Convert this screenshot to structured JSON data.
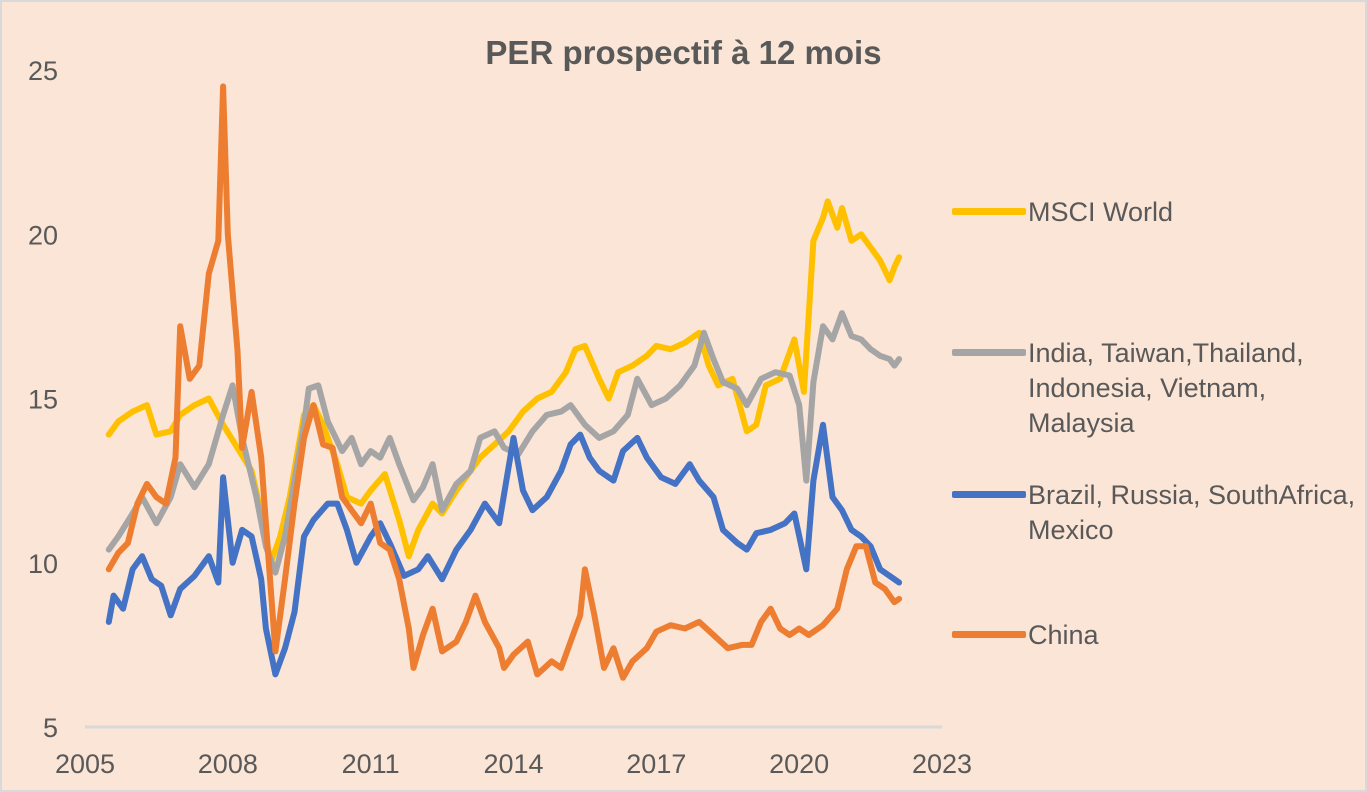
{
  "chart_data": {
    "type": "line",
    "title": "PER prospectif à 12 mois",
    "xlabel": "",
    "ylabel": "",
    "xlim": [
      2005,
      2023
    ],
    "ylim": [
      5,
      25
    ],
    "x_ticks": [
      "2005",
      "2008",
      "2011",
      "2014",
      "2017",
      "2020",
      "2023"
    ],
    "y_ticks": [
      "5",
      "10",
      "15",
      "20",
      "25"
    ],
    "grid": false,
    "legend_position": "right",
    "series": [
      {
        "name": "MSCI World",
        "color": "#ffc000",
        "points": [
          [
            2005.5,
            13.9
          ],
          [
            2005.7,
            14.3
          ],
          [
            2006.0,
            14.6
          ],
          [
            2006.3,
            14.8
          ],
          [
            2006.5,
            13.9
          ],
          [
            2006.8,
            14.0
          ],
          [
            2007.0,
            14.5
          ],
          [
            2007.3,
            14.8
          ],
          [
            2007.6,
            15.0
          ],
          [
            2007.9,
            14.2
          ],
          [
            2008.2,
            13.5
          ],
          [
            2008.5,
            12.8
          ],
          [
            2008.7,
            11.5
          ],
          [
            2008.9,
            10.0
          ],
          [
            2009.1,
            10.8
          ],
          [
            2009.3,
            12.0
          ],
          [
            2009.6,
            14.5
          ],
          [
            2009.8,
            14.8
          ],
          [
            2010.0,
            14.2
          ],
          [
            2010.3,
            13.0
          ],
          [
            2010.5,
            12.0
          ],
          [
            2010.8,
            11.8
          ],
          [
            2011.0,
            12.2
          ],
          [
            2011.3,
            12.7
          ],
          [
            2011.6,
            11.3
          ],
          [
            2011.8,
            10.2
          ],
          [
            2012.0,
            11.0
          ],
          [
            2012.3,
            11.8
          ],
          [
            2012.5,
            11.5
          ],
          [
            2012.8,
            12.2
          ],
          [
            2013.0,
            12.6
          ],
          [
            2013.3,
            13.2
          ],
          [
            2013.6,
            13.6
          ],
          [
            2013.9,
            14.0
          ],
          [
            2014.2,
            14.6
          ],
          [
            2014.5,
            15.0
          ],
          [
            2014.8,
            15.2
          ],
          [
            2015.1,
            15.8
          ],
          [
            2015.3,
            16.5
          ],
          [
            2015.5,
            16.6
          ],
          [
            2015.8,
            15.6
          ],
          [
            2016.0,
            15.0
          ],
          [
            2016.2,
            15.8
          ],
          [
            2016.5,
            16.0
          ],
          [
            2016.8,
            16.3
          ],
          [
            2017.0,
            16.6
          ],
          [
            2017.3,
            16.5
          ],
          [
            2017.6,
            16.7
          ],
          [
            2017.9,
            17.0
          ],
          [
            2018.1,
            16.0
          ],
          [
            2018.3,
            15.4
          ],
          [
            2018.6,
            15.6
          ],
          [
            2018.9,
            14.0
          ],
          [
            2019.1,
            14.2
          ],
          [
            2019.3,
            15.4
          ],
          [
            2019.6,
            15.6
          ],
          [
            2019.9,
            16.8
          ],
          [
            2020.1,
            15.2
          ],
          [
            2020.3,
            19.8
          ],
          [
            2020.5,
            20.5
          ],
          [
            2020.6,
            21.0
          ],
          [
            2020.8,
            20.2
          ],
          [
            2020.9,
            20.8
          ],
          [
            2021.1,
            19.8
          ],
          [
            2021.3,
            20.0
          ],
          [
            2021.5,
            19.6
          ],
          [
            2021.7,
            19.2
          ],
          [
            2021.9,
            18.6
          ],
          [
            2022.0,
            19.0
          ],
          [
            2022.1,
            19.3
          ]
        ]
      },
      {
        "name": "India, Taiwan,Thailand, Indonesia, Vietnam, Malaysia",
        "color": "#a5a5a5",
        "points": [
          [
            2005.5,
            10.4
          ],
          [
            2005.7,
            10.8
          ],
          [
            2006.0,
            11.5
          ],
          [
            2006.2,
            12.0
          ],
          [
            2006.5,
            11.2
          ],
          [
            2006.8,
            12.0
          ],
          [
            2007.0,
            13.0
          ],
          [
            2007.3,
            12.3
          ],
          [
            2007.6,
            13.0
          ],
          [
            2007.9,
            14.5
          ],
          [
            2008.1,
            15.4
          ],
          [
            2008.3,
            13.8
          ],
          [
            2008.6,
            12.0
          ],
          [
            2008.8,
            10.5
          ],
          [
            2009.0,
            9.7
          ],
          [
            2009.2,
            10.8
          ],
          [
            2009.4,
            12.5
          ],
          [
            2009.6,
            14.2
          ],
          [
            2009.7,
            15.3
          ],
          [
            2009.9,
            15.4
          ],
          [
            2010.1,
            14.3
          ],
          [
            2010.4,
            13.4
          ],
          [
            2010.6,
            13.8
          ],
          [
            2010.8,
            13.0
          ],
          [
            2011.0,
            13.4
          ],
          [
            2011.2,
            13.2
          ],
          [
            2011.4,
            13.8
          ],
          [
            2011.6,
            13.0
          ],
          [
            2011.9,
            11.9
          ],
          [
            2012.1,
            12.3
          ],
          [
            2012.3,
            13.0
          ],
          [
            2012.5,
            11.6
          ],
          [
            2012.8,
            12.4
          ],
          [
            2013.1,
            12.8
          ],
          [
            2013.3,
            13.8
          ],
          [
            2013.6,
            14.0
          ],
          [
            2013.8,
            13.5
          ],
          [
            2014.1,
            13.3
          ],
          [
            2014.4,
            14.0
          ],
          [
            2014.7,
            14.5
          ],
          [
            2015.0,
            14.6
          ],
          [
            2015.2,
            14.8
          ],
          [
            2015.5,
            14.2
          ],
          [
            2015.8,
            13.8
          ],
          [
            2016.1,
            14.0
          ],
          [
            2016.4,
            14.5
          ],
          [
            2016.6,
            15.6
          ],
          [
            2016.9,
            14.8
          ],
          [
            2017.2,
            15.0
          ],
          [
            2017.5,
            15.4
          ],
          [
            2017.8,
            16.0
          ],
          [
            2018.0,
            17.0
          ],
          [
            2018.2,
            16.2
          ],
          [
            2018.4,
            15.5
          ],
          [
            2018.7,
            15.3
          ],
          [
            2018.9,
            14.8
          ],
          [
            2019.2,
            15.6
          ],
          [
            2019.5,
            15.8
          ],
          [
            2019.8,
            15.7
          ],
          [
            2020.0,
            14.8
          ],
          [
            2020.15,
            12.5
          ],
          [
            2020.3,
            15.5
          ],
          [
            2020.5,
            17.2
          ],
          [
            2020.7,
            16.8
          ],
          [
            2020.9,
            17.6
          ],
          [
            2021.1,
            16.9
          ],
          [
            2021.3,
            16.8
          ],
          [
            2021.5,
            16.5
          ],
          [
            2021.7,
            16.3
          ],
          [
            2021.9,
            16.2
          ],
          [
            2022.0,
            16.0
          ],
          [
            2022.1,
            16.2
          ]
        ]
      },
      {
        "name": "Brazil, Russia, SouthAfrica, Mexico",
        "color": "#4472c4",
        "points": [
          [
            2005.5,
            8.2
          ],
          [
            2005.6,
            9.0
          ],
          [
            2005.8,
            8.6
          ],
          [
            2006.0,
            9.8
          ],
          [
            2006.2,
            10.2
          ],
          [
            2006.4,
            9.5
          ],
          [
            2006.6,
            9.3
          ],
          [
            2006.8,
            8.4
          ],
          [
            2007.0,
            9.2
          ],
          [
            2007.3,
            9.6
          ],
          [
            2007.6,
            10.2
          ],
          [
            2007.8,
            9.4
          ],
          [
            2007.9,
            12.6
          ],
          [
            2008.1,
            10.0
          ],
          [
            2008.3,
            11.0
          ],
          [
            2008.5,
            10.8
          ],
          [
            2008.7,
            9.5
          ],
          [
            2008.8,
            8.0
          ],
          [
            2009.0,
            6.6
          ],
          [
            2009.2,
            7.4
          ],
          [
            2009.4,
            8.5
          ],
          [
            2009.6,
            10.8
          ],
          [
            2009.8,
            11.3
          ],
          [
            2010.1,
            11.8
          ],
          [
            2010.3,
            11.8
          ],
          [
            2010.5,
            11.0
          ],
          [
            2010.7,
            10.0
          ],
          [
            2011.0,
            10.8
          ],
          [
            2011.2,
            11.2
          ],
          [
            2011.4,
            10.6
          ],
          [
            2011.7,
            9.6
          ],
          [
            2012.0,
            9.8
          ],
          [
            2012.2,
            10.2
          ],
          [
            2012.5,
            9.5
          ],
          [
            2012.8,
            10.4
          ],
          [
            2013.1,
            11.0
          ],
          [
            2013.4,
            11.8
          ],
          [
            2013.7,
            11.2
          ],
          [
            2014.0,
            13.8
          ],
          [
            2014.2,
            12.2
          ],
          [
            2014.4,
            11.6
          ],
          [
            2014.7,
            12.0
          ],
          [
            2015.0,
            12.8
          ],
          [
            2015.2,
            13.6
          ],
          [
            2015.4,
            13.9
          ],
          [
            2015.6,
            13.2
          ],
          [
            2015.8,
            12.8
          ],
          [
            2016.1,
            12.5
          ],
          [
            2016.3,
            13.4
          ],
          [
            2016.6,
            13.8
          ],
          [
            2016.8,
            13.2
          ],
          [
            2017.1,
            12.6
          ],
          [
            2017.4,
            12.4
          ],
          [
            2017.7,
            13.0
          ],
          [
            2017.9,
            12.5
          ],
          [
            2018.2,
            12.0
          ],
          [
            2018.4,
            11.0
          ],
          [
            2018.7,
            10.6
          ],
          [
            2018.9,
            10.4
          ],
          [
            2019.1,
            10.9
          ],
          [
            2019.4,
            11.0
          ],
          [
            2019.7,
            11.2
          ],
          [
            2019.9,
            11.5
          ],
          [
            2020.15,
            9.8
          ],
          [
            2020.3,
            12.5
          ],
          [
            2020.5,
            14.2
          ],
          [
            2020.7,
            12.0
          ],
          [
            2020.9,
            11.6
          ],
          [
            2021.1,
            11.0
          ],
          [
            2021.3,
            10.8
          ],
          [
            2021.5,
            10.5
          ],
          [
            2021.7,
            9.8
          ],
          [
            2021.9,
            9.6
          ],
          [
            2022.1,
            9.4
          ]
        ]
      },
      {
        "name": "China",
        "color": "#ed7d31",
        "points": [
          [
            2005.5,
            9.8
          ],
          [
            2005.7,
            10.3
          ],
          [
            2005.9,
            10.6
          ],
          [
            2006.1,
            11.8
          ],
          [
            2006.3,
            12.4
          ],
          [
            2006.5,
            12.0
          ],
          [
            2006.7,
            11.8
          ],
          [
            2006.9,
            13.2
          ],
          [
            2007.0,
            17.2
          ],
          [
            2007.2,
            15.6
          ],
          [
            2007.4,
            16.0
          ],
          [
            2007.6,
            18.8
          ],
          [
            2007.8,
            19.8
          ],
          [
            2007.9,
            24.5
          ],
          [
            2008.0,
            20.0
          ],
          [
            2008.2,
            16.5
          ],
          [
            2008.3,
            13.5
          ],
          [
            2008.5,
            15.2
          ],
          [
            2008.7,
            13.2
          ],
          [
            2008.8,
            11.2
          ],
          [
            2009.0,
            7.3
          ],
          [
            2009.2,
            9.5
          ],
          [
            2009.4,
            11.8
          ],
          [
            2009.6,
            13.8
          ],
          [
            2009.8,
            14.8
          ],
          [
            2010.0,
            13.6
          ],
          [
            2010.2,
            13.5
          ],
          [
            2010.4,
            12.0
          ],
          [
            2010.6,
            11.6
          ],
          [
            2010.8,
            11.2
          ],
          [
            2011.0,
            11.8
          ],
          [
            2011.2,
            10.6
          ],
          [
            2011.4,
            10.4
          ],
          [
            2011.6,
            9.5
          ],
          [
            2011.8,
            8.0
          ],
          [
            2011.9,
            6.8
          ],
          [
            2012.1,
            7.8
          ],
          [
            2012.3,
            8.6
          ],
          [
            2012.5,
            7.3
          ],
          [
            2012.8,
            7.6
          ],
          [
            2013.0,
            8.2
          ],
          [
            2013.2,
            9.0
          ],
          [
            2013.4,
            8.2
          ],
          [
            2013.7,
            7.4
          ],
          [
            2013.8,
            6.8
          ],
          [
            2014.0,
            7.2
          ],
          [
            2014.3,
            7.6
          ],
          [
            2014.5,
            6.6
          ],
          [
            2014.8,
            7.0
          ],
          [
            2015.0,
            6.8
          ],
          [
            2015.2,
            7.6
          ],
          [
            2015.4,
            8.4
          ],
          [
            2015.5,
            9.8
          ],
          [
            2015.7,
            8.4
          ],
          [
            2015.9,
            6.8
          ],
          [
            2016.1,
            7.4
          ],
          [
            2016.3,
            6.5
          ],
          [
            2016.5,
            7.0
          ],
          [
            2016.8,
            7.4
          ],
          [
            2017.0,
            7.9
          ],
          [
            2017.3,
            8.1
          ],
          [
            2017.6,
            8.0
          ],
          [
            2017.9,
            8.2
          ],
          [
            2018.2,
            7.8
          ],
          [
            2018.5,
            7.4
          ],
          [
            2018.8,
            7.5
          ],
          [
            2019.0,
            7.5
          ],
          [
            2019.2,
            8.2
          ],
          [
            2019.4,
            8.6
          ],
          [
            2019.6,
            8.0
          ],
          [
            2019.8,
            7.8
          ],
          [
            2020.0,
            8.0
          ],
          [
            2020.2,
            7.8
          ],
          [
            2020.5,
            8.1
          ],
          [
            2020.8,
            8.6
          ],
          [
            2021.0,
            9.8
          ],
          [
            2021.2,
            10.5
          ],
          [
            2021.4,
            10.5
          ],
          [
            2021.6,
            9.4
          ],
          [
            2021.8,
            9.2
          ],
          [
            2022.0,
            8.8
          ],
          [
            2022.1,
            8.9
          ]
        ]
      }
    ]
  }
}
